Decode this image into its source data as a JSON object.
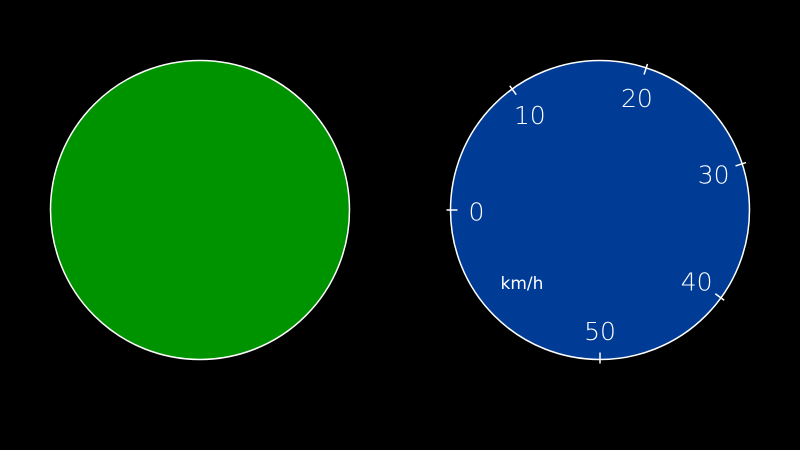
{
  "left_dial": {
    "fill": "#009300",
    "border": "#ffffff"
  },
  "speed_dial": {
    "fill": "#003c96",
    "border": "#ffffff",
    "unit": "km/h",
    "ticks": [
      {
        "value": 0,
        "label": "0"
      },
      {
        "value": 10,
        "label": "10"
      },
      {
        "value": 20,
        "label": "20"
      },
      {
        "value": 30,
        "label": "30"
      },
      {
        "value": 40,
        "label": "40"
      },
      {
        "value": 50,
        "label": "50"
      }
    ]
  }
}
